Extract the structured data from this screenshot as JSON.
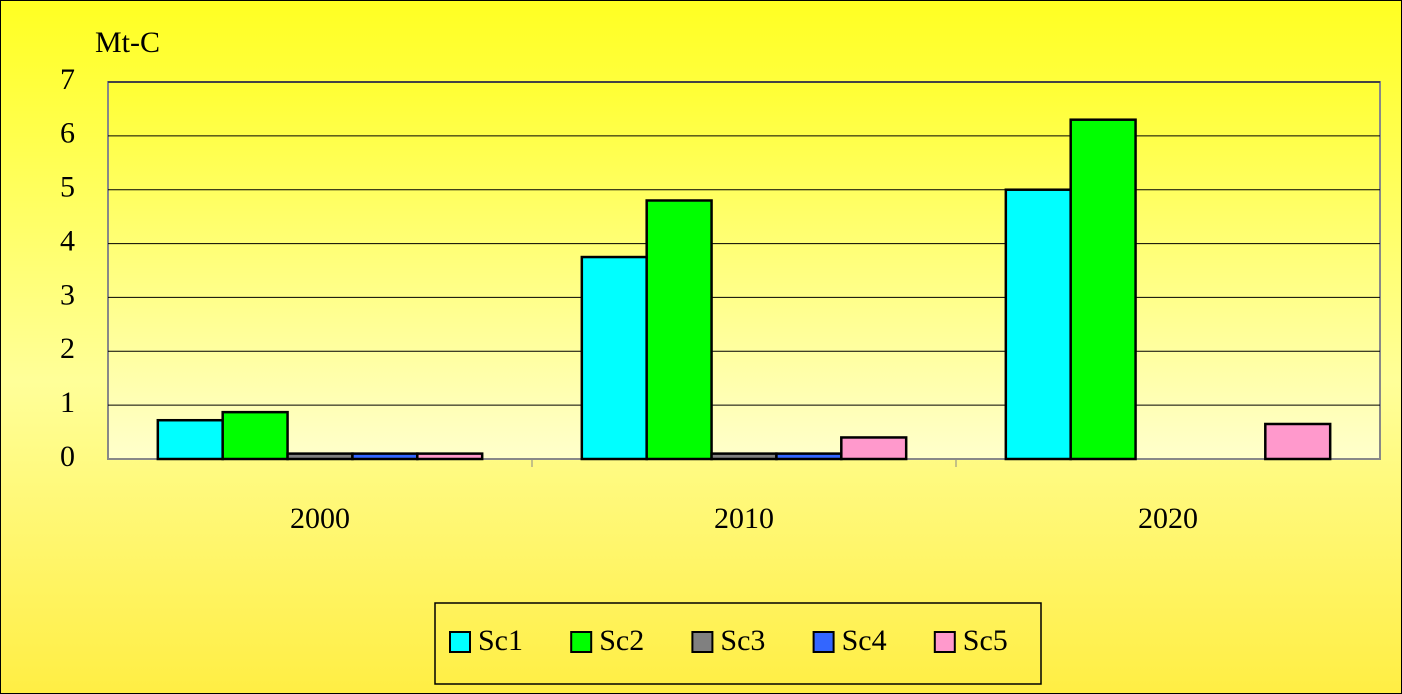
{
  "chart_data": {
    "type": "bar",
    "y_label": "Mt-C",
    "categories": [
      "2000",
      "2010",
      "2020"
    ],
    "series": [
      {
        "name": "Sc1",
        "color": "#00ffff",
        "values": [
          0.72,
          3.75,
          5.0
        ]
      },
      {
        "name": "Sc2",
        "color": "#00ff00",
        "values": [
          0.87,
          4.8,
          6.3
        ]
      },
      {
        "name": "Sc3",
        "color": "#808080",
        "values": [
          0.1,
          0.1,
          0
        ]
      },
      {
        "name": "Sc4",
        "color": "#3366ff",
        "values": [
          0.1,
          0.1,
          0
        ]
      },
      {
        "name": "Sc5",
        "color": "#ff99cc",
        "values": [
          0.1,
          0.4,
          0.65
        ]
      }
    ],
    "ylim": [
      0,
      7
    ],
    "yticks": [
      0,
      1,
      2,
      3,
      4,
      5,
      6,
      7
    ],
    "grid": true,
    "legend": "bottom"
  }
}
